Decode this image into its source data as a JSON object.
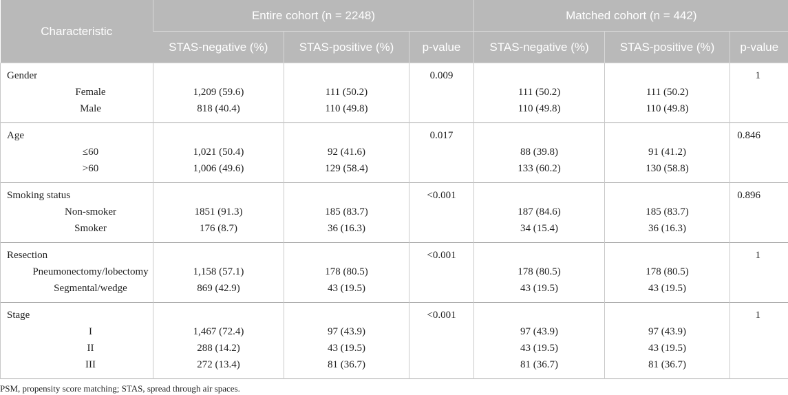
{
  "header": {
    "row1": [
      "Characteristic",
      "Entire cohort (n = 2248)",
      "Matched cohort (n = 442)"
    ],
    "row2": [
      "STAS-negative (%)",
      "STAS-positive (%)",
      "p-value",
      "STAS-negative (%)",
      "STAS-positive (%)",
      "p-value"
    ]
  },
  "groups": [
    {
      "label": "Gender",
      "p_entire": "0.009",
      "p_matched": "1",
      "rows": [
        {
          "label": "Female",
          "cells": [
            "1,209 (59.6)",
            "111 (50.2)",
            "111 (50.2)",
            "111 (50.2)"
          ]
        },
        {
          "label": "Male",
          "cells": [
            "818 (40.4)",
            "110 (49.8)",
            "110 (49.8)",
            "110 (49.8)"
          ]
        }
      ]
    },
    {
      "label": "Age",
      "p_entire": "0.017",
      "p_matched": "0.846",
      "rows": [
        {
          "label": "≤60",
          "cells": [
            "1,021 (50.4)",
            "92 (41.6)",
            "88 (39.8)",
            "91 (41.2)"
          ]
        },
        {
          "label": ">60",
          "cells": [
            "1,006 (49.6)",
            "129 (58.4)",
            "133 (60.2)",
            "130 (58.8)"
          ]
        }
      ]
    },
    {
      "label": "Smoking status",
      "p_entire": "<0.001",
      "p_matched": "0.896",
      "rows": [
        {
          "label": "Non-smoker",
          "cells": [
            "1851 (91.3)",
            "185 (83.7)",
            "187 (84.6)",
            "185 (83.7)"
          ]
        },
        {
          "label": "Smoker",
          "cells": [
            "176 (8.7)",
            "36 (16.3)",
            "34 (15.4)",
            "36 (16.3)"
          ]
        }
      ]
    },
    {
      "label": "Resection",
      "p_entire": "<0.001",
      "p_matched": "1",
      "rows": [
        {
          "label": "Pneumonectomy/lobectomy",
          "cells": [
            "1,158 (57.1)",
            "178 (80.5)",
            "178 (80.5)",
            "178 (80.5)"
          ]
        },
        {
          "label": "Segmental/wedge",
          "cells": [
            "869 (42.9)",
            "43 (19.5)",
            "43 (19.5)",
            "43 (19.5)"
          ]
        }
      ]
    },
    {
      "label": "Stage",
      "p_entire": "<0.001",
      "p_matched": "1",
      "rows": [
        {
          "label": "I",
          "cells": [
            "1,467 (72.4)",
            "97 (43.9)",
            "97 (43.9)",
            "97 (43.9)"
          ]
        },
        {
          "label": "II",
          "cells": [
            "288 (14.2)",
            "43 (19.5)",
            "43 (19.5)",
            "43 (19.5)"
          ]
        },
        {
          "label": "III",
          "cells": [
            "272 (13.4)",
            "81 (36.7)",
            "81 (36.7)",
            "81 (36.7)"
          ]
        }
      ]
    }
  ],
  "footnote": "PSM, propensity score matching; STAS, spread through air spaces."
}
